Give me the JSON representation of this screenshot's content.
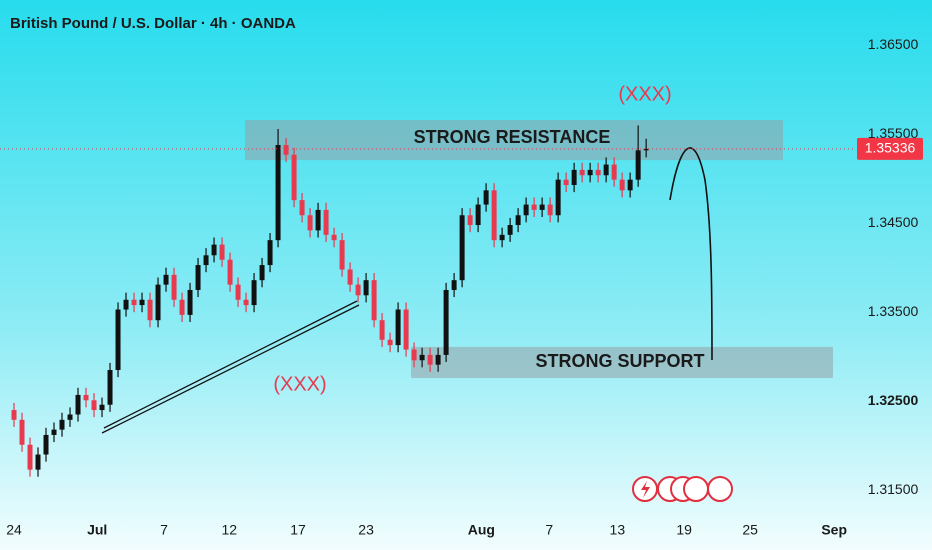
{
  "chart_data": {
    "type": "candlestick",
    "title": "British Pound / U.S. Dollar · 4h · OANDA",
    "up_color": "#111111",
    "down_color": "#e8394f",
    "open": [
      1.324,
      1.3229,
      1.3201,
      1.3173,
      1.319,
      1.3212,
      1.3218,
      1.3229,
      1.3235,
      1.3257,
      1.3251,
      1.324,
      1.3246,
      1.3285,
      1.3353,
      1.3364,
      1.3358,
      1.3364,
      1.3341,
      1.3381,
      1.3392,
      1.3364,
      1.3347,
      1.3375,
      1.3403,
      1.3414,
      1.3426,
      1.3409,
      1.3381,
      1.3364,
      1.3358,
      1.3386,
      1.3403,
      1.3431,
      1.3538,
      1.3527,
      1.3476,
      1.3459,
      1.3442,
      1.3465,
      1.3437,
      1.3431,
      1.3398,
      1.3381,
      1.3369,
      1.3386,
      1.3341,
      1.3319,
      1.3313,
      1.3353,
      1.3308,
      1.3296,
      1.3302,
      1.3291,
      1.3302,
      1.3375,
      1.3386,
      1.3459,
      1.3448,
      1.3471,
      1.3487,
      1.3431,
      1.3437,
      1.3448,
      1.3459,
      1.3471,
      1.3465,
      1.3471,
      1.3459,
      1.3499,
      1.3493,
      1.351,
      1.3504,
      1.351,
      1.3504,
      1.3516,
      1.3499,
      1.3487,
      1.3499,
      1.3532
    ],
    "high": [
      1.3248,
      1.3237,
      1.3209,
      1.3198,
      1.322,
      1.3226,
      1.3237,
      1.3243,
      1.3265,
      1.3265,
      1.3259,
      1.3254,
      1.3293,
      1.3361,
      1.3372,
      1.3372,
      1.3372,
      1.3372,
      1.3389,
      1.34,
      1.34,
      1.3372,
      1.3383,
      1.3411,
      1.3422,
      1.3434,
      1.3434,
      1.3417,
      1.3389,
      1.3372,
      1.3394,
      1.3411,
      1.3439,
      1.3556,
      1.3546,
      1.3535,
      1.3484,
      1.3467,
      1.3473,
      1.3473,
      1.3445,
      1.3439,
      1.3406,
      1.3389,
      1.3394,
      1.3394,
      1.3349,
      1.3327,
      1.3361,
      1.3361,
      1.3316,
      1.331,
      1.331,
      1.331,
      1.3383,
      1.3394,
      1.3467,
      1.3467,
      1.3479,
      1.3495,
      1.3495,
      1.3445,
      1.3456,
      1.3467,
      1.3479,
      1.3479,
      1.3479,
      1.3479,
      1.3507,
      1.3507,
      1.3518,
      1.3518,
      1.3518,
      1.3518,
      1.3524,
      1.3524,
      1.3507,
      1.3507,
      1.356,
      1.3545
    ],
    "low": [
      1.3221,
      1.3193,
      1.3165,
      1.3165,
      1.3182,
      1.3204,
      1.321,
      1.3221,
      1.3227,
      1.3243,
      1.3232,
      1.3232,
      1.3238,
      1.3277,
      1.3345,
      1.335,
      1.335,
      1.3333,
      1.3333,
      1.3373,
      1.3356,
      1.3339,
      1.3339,
      1.3367,
      1.3395,
      1.3406,
      1.3401,
      1.3373,
      1.3356,
      1.335,
      1.335,
      1.3378,
      1.3395,
      1.3423,
      1.3519,
      1.3468,
      1.3451,
      1.3434,
      1.3434,
      1.3429,
      1.3423,
      1.339,
      1.3373,
      1.3361,
      1.3361,
      1.3333,
      1.3311,
      1.3305,
      1.3305,
      1.33,
      1.3288,
      1.3288,
      1.3283,
      1.3283,
      1.3294,
      1.3367,
      1.3378,
      1.344,
      1.344,
      1.3463,
      1.3423,
      1.3423,
      1.3429,
      1.344,
      1.3451,
      1.3457,
      1.3457,
      1.3451,
      1.3451,
      1.3485,
      1.3485,
      1.3496,
      1.3496,
      1.3496,
      1.3496,
      1.3491,
      1.3479,
      1.3479,
      1.3491,
      1.3524
    ],
    "close": [
      1.3229,
      1.3201,
      1.3173,
      1.319,
      1.3212,
      1.3218,
      1.3229,
      1.3235,
      1.3257,
      1.3251,
      1.324,
      1.3246,
      1.3285,
      1.3353,
      1.3364,
      1.3358,
      1.3364,
      1.3341,
      1.3381,
      1.3392,
      1.3364,
      1.3347,
      1.3375,
      1.3403,
      1.3414,
      1.3426,
      1.3409,
      1.3381,
      1.3364,
      1.3358,
      1.3386,
      1.3403,
      1.3431,
      1.3538,
      1.3527,
      1.3476,
      1.3459,
      1.3442,
      1.3465,
      1.3437,
      1.3431,
      1.3398,
      1.3381,
      1.3369,
      1.3386,
      1.3341,
      1.3319,
      1.3313,
      1.3353,
      1.3308,
      1.3296,
      1.3302,
      1.3291,
      1.3302,
      1.3375,
      1.3386,
      1.3459,
      1.3448,
      1.3471,
      1.3487,
      1.3431,
      1.3437,
      1.3448,
      1.3459,
      1.3471,
      1.3465,
      1.3471,
      1.3459,
      1.3499,
      1.3493,
      1.351,
      1.3504,
      1.351,
      1.3504,
      1.3516,
      1.3499,
      1.3487,
      1.3499,
      1.3532,
      1.35336
    ],
    "xlim": [
      -1.75,
      105.1
    ],
    "xticks": [
      {
        "value": 0,
        "label": "24"
      },
      {
        "value": 10.4,
        "label": "Jul"
      },
      {
        "value": 18.75,
        "label": "7"
      },
      {
        "value": 26.9,
        "label": "12"
      },
      {
        "value": 35.5,
        "label": "17"
      },
      {
        "value": 44,
        "label": "23"
      },
      {
        "value": 58.4,
        "label": "Aug"
      },
      {
        "value": 66.9,
        "label": "7"
      },
      {
        "value": 75.4,
        "label": "13"
      },
      {
        "value": 83.75,
        "label": "19"
      },
      {
        "value": 92,
        "label": "25"
      },
      {
        "value": 102.5,
        "label": "Sep"
      }
    ],
    "ylim": [
      1.3122,
      1.3701
    ],
    "yticks": [
      {
        "value": 1.365,
        "label": "1.36500"
      },
      {
        "value": 1.355,
        "label": "1.35500"
      },
      {
        "value": 1.345,
        "label": "1.34500"
      },
      {
        "value": 1.335,
        "label": "1.33500"
      },
      {
        "value": 1.325,
        "label": "1.32500"
      },
      {
        "value": 1.315,
        "label": "1.31500"
      }
    ],
    "last_price": {
      "value": 1.35336,
      "label": "1.35336"
    },
    "zones": [
      {
        "label": "STRONG RESISTANCE",
        "top": 1.3566,
        "bottom": 1.3521
      },
      {
        "label": "STRONG SUPPORT",
        "top": 1.3311,
        "bottom": 1.3276
      }
    ],
    "annotations": [
      "(XXX)",
      "(XXX)"
    ]
  }
}
